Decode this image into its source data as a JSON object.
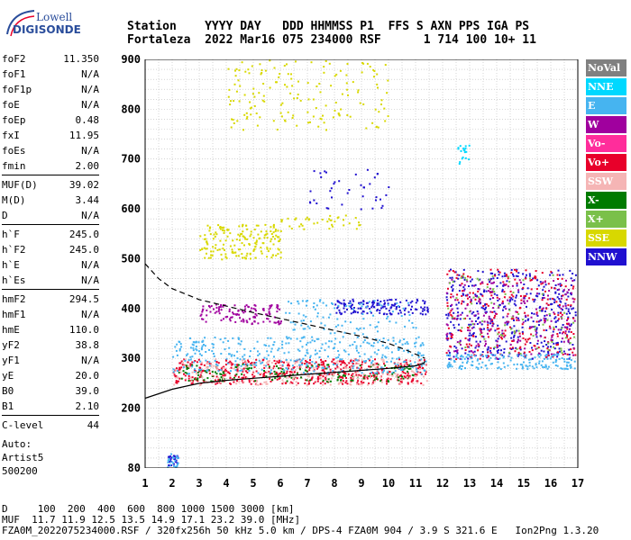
{
  "logo": {
    "line1": "Lowell",
    "line2": "DIGISONDE"
  },
  "header": {
    "line1": "Station    YYYY DAY   DDD HHMMSS P1  FFS S AXN PPS IGA PS",
    "line2": "Fortaleza  2022 Mar16 075 234000 RSF      1 714 100 10+ 11"
  },
  "params": [
    {
      "group": [
        {
          "k": "foF2",
          "v": "11.350"
        },
        {
          "k": "foF1",
          "v": "N/A"
        },
        {
          "k": "foF1p",
          "v": "N/A"
        },
        {
          "k": "foE",
          "v": "N/A"
        },
        {
          "k": "foEp",
          "v": "0.48"
        },
        {
          "k": "fxI",
          "v": "11.95"
        },
        {
          "k": "foEs",
          "v": "N/A"
        },
        {
          "k": "fmin",
          "v": "2.00"
        }
      ]
    },
    {
      "group": [
        {
          "k": "MUF(D)",
          "v": "39.02"
        },
        {
          "k": "M(D)",
          "v": "3.44"
        },
        {
          "k": "D",
          "v": "N/A"
        }
      ]
    },
    {
      "group": [
        {
          "k": "h`F",
          "v": "245.0"
        },
        {
          "k": "h`F2",
          "v": "245.0"
        },
        {
          "k": "h`E",
          "v": "N/A"
        },
        {
          "k": "h`Es",
          "v": "N/A"
        }
      ]
    },
    {
      "group": [
        {
          "k": "hmF2",
          "v": "294.5"
        },
        {
          "k": "hmF1",
          "v": "N/A"
        },
        {
          "k": "hmE",
          "v": "110.0"
        },
        {
          "k": "yF2",
          "v": "38.8"
        },
        {
          "k": "yF1",
          "v": "N/A"
        },
        {
          "k": "yE",
          "v": "20.0"
        },
        {
          "k": "B0",
          "v": "39.0"
        },
        {
          "k": "B1",
          "v": "2.10"
        }
      ]
    },
    {
      "group": [
        {
          "k": "C-level",
          "v": "44"
        }
      ]
    }
  ],
  "auto": {
    "l1": "Auto:",
    "l2": "Artist5",
    "l3": "500200"
  },
  "footer": {
    "line1": "D     100  200  400  600  800 1000 1500 3000 [km]",
    "line2": "MUF  11.7 11.9 12.5 13.5 14.9 17.1 23.2 39.0 [MHz]",
    "line3": "FZA0M_2022075234000.RSF / 320fx256h 50 kHz 5.0 km / DPS-4 FZA0M 904 / 3.9 S 321.6 E   Ion2Png 1.3.20"
  },
  "legend": [
    {
      "name": "NoVal",
      "color": "#808080"
    },
    {
      "name": "NNE",
      "color": "#00d8ff"
    },
    {
      "name": "E",
      "color": "#46b4f0"
    },
    {
      "name": "W",
      "color": "#a0009e"
    },
    {
      "name": "Vo-",
      "color": "#ff2d9b"
    },
    {
      "name": "Vo+",
      "color": "#e8002a"
    },
    {
      "name": "SSW",
      "color": "#f5b5b5"
    },
    {
      "name": "X-",
      "color": "#007b00"
    },
    {
      "name": "X+",
      "color": "#7ac04a"
    },
    {
      "name": "SSE",
      "color": "#d8d800"
    },
    {
      "name": "NNW",
      "color": "#2010d0"
    }
  ],
  "chart_data": {
    "type": "scatter",
    "xlim": [
      1,
      17
    ],
    "ylim": [
      80,
      900
    ],
    "xticks": [
      1,
      2,
      3,
      4,
      5,
      6,
      7,
      8,
      9,
      10,
      11,
      12,
      13,
      14,
      15,
      16,
      17
    ],
    "yticks": [
      80,
      200,
      300,
      400,
      500,
      600,
      700,
      800,
      900
    ],
    "grid": true,
    "profile_curve": [
      [
        1,
        220
      ],
      [
        2,
        238
      ],
      [
        3,
        250
      ],
      [
        4,
        256
      ],
      [
        5,
        260
      ],
      [
        6,
        264
      ],
      [
        7,
        268
      ],
      [
        8,
        272
      ],
      [
        9,
        276
      ],
      [
        10,
        280
      ],
      [
        11,
        285
      ],
      [
        11.3,
        290
      ],
      [
        11.35,
        294.5
      ]
    ],
    "dashed_upper": [
      [
        1,
        490
      ],
      [
        1.5,
        460
      ],
      [
        2,
        440
      ],
      [
        3,
        418
      ],
      [
        4,
        405
      ],
      [
        5,
        392
      ],
      [
        6,
        380
      ],
      [
        7,
        368
      ],
      [
        8,
        356
      ],
      [
        9,
        344
      ],
      [
        10,
        330
      ],
      [
        10.6,
        318
      ],
      [
        11.35,
        300
      ]
    ],
    "clusters": [
      {
        "color": "#e8002a",
        "x": [
          2.0,
          11.4
        ],
        "y": [
          250,
          300
        ],
        "n": 520
      },
      {
        "color": "#007b00",
        "x": [
          2.2,
          11.0
        ],
        "y": [
          255,
          290
        ],
        "n": 160
      },
      {
        "color": "#f5b5b5",
        "x": [
          2.0,
          11.4
        ],
        "y": [
          248,
          300
        ],
        "n": 220
      },
      {
        "color": "#46b4f0",
        "x": [
          2.0,
          11.4
        ],
        "y": [
          270,
          345
        ],
        "n": 380
      },
      {
        "color": "#a0009e",
        "x": [
          3.0,
          6.0
        ],
        "y": [
          370,
          410
        ],
        "n": 120
      },
      {
        "color": "#2010d0",
        "x": [
          8.0,
          11.5
        ],
        "y": [
          390,
          420
        ],
        "n": 140
      },
      {
        "color": "#46b4f0",
        "x": [
          6.0,
          11.0
        ],
        "y": [
          350,
          420
        ],
        "n": 100
      },
      {
        "color": "#d8d800",
        "x": [
          3.0,
          6.0
        ],
        "y": [
          500,
          570
        ],
        "n": 180
      },
      {
        "color": "#d8d800",
        "x": [
          4.0,
          10.0
        ],
        "y": [
          760,
          900
        ],
        "n": 160
      },
      {
        "color": "#d8d800",
        "x": [
          6.0,
          9.0
        ],
        "y": [
          560,
          590
        ],
        "n": 40
      },
      {
        "color": "#2010d0",
        "x": [
          7.0,
          10.0
        ],
        "y": [
          600,
          680
        ],
        "n": 40
      },
      {
        "color": "#2010d0",
        "x": [
          12.1,
          16.9
        ],
        "y": [
          300,
          480
        ],
        "n": 420
      },
      {
        "color": "#e8002a",
        "x": [
          12.1,
          16.9
        ],
        "y": [
          300,
          480
        ],
        "n": 260
      },
      {
        "color": "#a0009e",
        "x": [
          12.1,
          16.9
        ],
        "y": [
          300,
          460
        ],
        "n": 200
      },
      {
        "color": "#46b4f0",
        "x": [
          12.1,
          16.9
        ],
        "y": [
          280,
          310
        ],
        "n": 160
      },
      {
        "color": "#7ac04a",
        "x": [
          12.1,
          16.9
        ],
        "y": [
          310,
          470
        ],
        "n": 80
      },
      {
        "color": "#00d8ff",
        "x": [
          12.5,
          13.0
        ],
        "y": [
          690,
          730
        ],
        "n": 18
      },
      {
        "color": "#2010d0",
        "x": [
          1.8,
          2.2
        ],
        "y": [
          80,
          110
        ],
        "n": 25
      },
      {
        "color": "#46b4f0",
        "x": [
          1.8,
          2.2
        ],
        "y": [
          80,
          110
        ],
        "n": 20
      }
    ]
  }
}
